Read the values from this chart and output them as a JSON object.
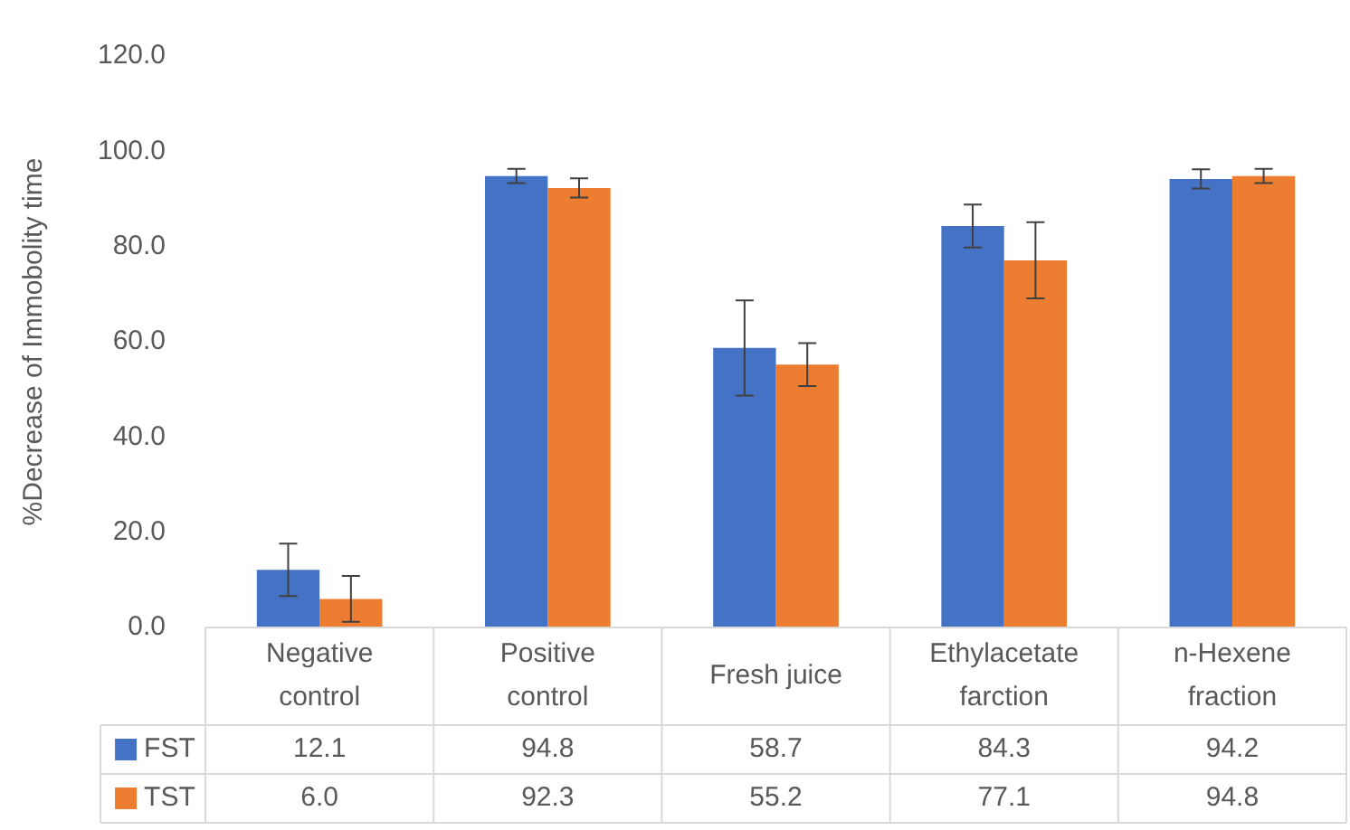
{
  "chart_data": {
    "type": "bar",
    "ylabel": "%Decrease of Immobolity time",
    "categories": [
      "Negative control",
      "Positive control",
      "Fresh juice",
      "Ethylacetate farction",
      "n-Hexene fraction"
    ],
    "series": [
      {
        "name": "FST",
        "color": "#4472c4",
        "values": [
          12.1,
          94.8,
          58.7,
          84.3,
          94.2
        ],
        "value_labels": [
          "12.1",
          "94.8",
          "58.7",
          "84.3",
          "94.2"
        ],
        "errors": [
          5.5,
          1.5,
          10,
          4.5,
          2
        ]
      },
      {
        "name": "TST",
        "color": "#ed7d31",
        "values": [
          6.0,
          92.3,
          55.2,
          77.1,
          94.8
        ],
        "value_labels": [
          "6.0",
          "92.3",
          "55.2",
          "77.1",
          "94.8"
        ],
        "errors": [
          4.8,
          2,
          4.5,
          8,
          1.5
        ]
      }
    ],
    "ylim": [
      0,
      120
    ],
    "yticks": [
      {
        "value": 0,
        "label": "0.0"
      },
      {
        "value": 20,
        "label": "20.0"
      },
      {
        "value": 40,
        "label": "40.0"
      },
      {
        "value": 60,
        "label": "60.0"
      },
      {
        "value": 80,
        "label": "80.0"
      },
      {
        "value": 100,
        "label": "100.0"
      },
      {
        "value": 120,
        "label": "120.0"
      }
    ],
    "grid": false,
    "legend": "bottom"
  }
}
